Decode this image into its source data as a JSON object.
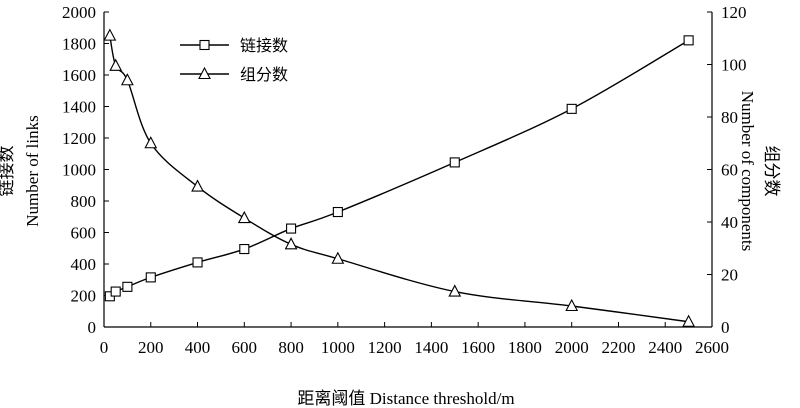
{
  "chart_data": {
    "type": "line",
    "xlabel": "距离阈值 Distance threshold/m",
    "ylabel_left": [
      "链接数",
      "Number of links"
    ],
    "ylabel_right": [
      "组分数",
      "Number of components"
    ],
    "xlim": [
      0,
      2600
    ],
    "ylim_left": [
      0,
      2000
    ],
    "ylim_right": [
      0,
      120
    ],
    "x_ticks": [
      0,
      200,
      400,
      600,
      800,
      1000,
      1200,
      1400,
      1600,
      1800,
      2000,
      2200,
      2400,
      2600
    ],
    "y_left_ticks": [
      0,
      200,
      400,
      600,
      800,
      1000,
      1200,
      1400,
      1600,
      1800,
      2000
    ],
    "y_right_ticks": [
      0,
      20,
      40,
      60,
      80,
      100,
      120
    ],
    "grid": false,
    "legend_position": "top-left",
    "series": [
      {
        "name": "链接数",
        "axis": "left",
        "marker": "square",
        "x": [
          25,
          50,
          100,
          200,
          400,
          600,
          800,
          1000,
          1500,
          2000,
          2500
        ],
        "y": [
          195,
          225,
          255,
          315,
          410,
          495,
          625,
          730,
          1045,
          1385,
          1820
        ]
      },
      {
        "name": "组分数",
        "axis": "right",
        "marker": "triangle",
        "x": [
          25,
          50,
          100,
          200,
          400,
          600,
          800,
          1000,
          1500,
          2000,
          2500
        ],
        "y": [
          111,
          99.5,
          94,
          70,
          53.5,
          41.5,
          31.5,
          26,
          13.5,
          8,
          2
        ]
      }
    ]
  }
}
